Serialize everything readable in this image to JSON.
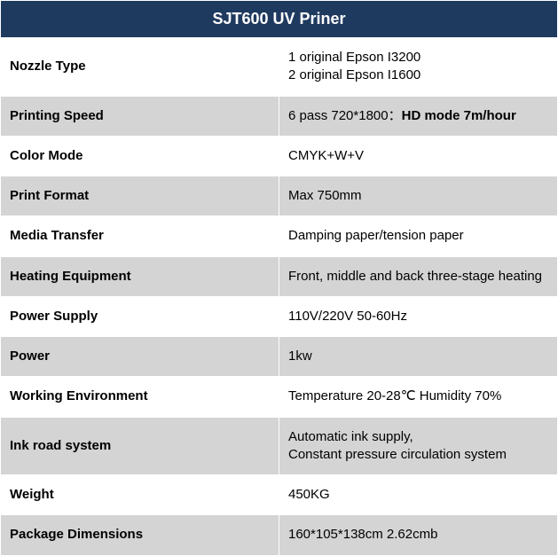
{
  "table": {
    "title": "SJT600 UV Priner",
    "header_bg": "#1f3a5f",
    "header_color": "#ffffff",
    "header_fontsize": 18,
    "row_odd_bg": "#ffffff",
    "row_even_bg": "#d4d4d4",
    "border_color": "#ffffff",
    "label_width": 195,
    "value_width": 434,
    "cell_fontsize": 15,
    "rows": [
      {
        "label": "Nozzle Type",
        "value_line1": "1 original Epson I3200",
        "value_line2": "2 original Epson I1600",
        "multiline": true
      },
      {
        "label": "Printing Speed",
        "value_prefix": "6 pass 720*1800：",
        "value_bold": "HD mode 7m/hour",
        "has_bold": true
      },
      {
        "label": "Color Mode",
        "value": "CMYK+W+V"
      },
      {
        "label": "Print Format",
        "value": "Max 750mm"
      },
      {
        "label": "Media Transfer",
        "value": "Damping paper/tension paper"
      },
      {
        "label": "Heating Equipment",
        "value": "Front, middle and back three-stage heating"
      },
      {
        "label": "Power Supply",
        "value": "110V/220V 50-60Hz"
      },
      {
        "label": "Power",
        "value": "1kw"
      },
      {
        "label": "Working Environment",
        "value": "Temperature 20-28℃ Humidity 70%"
      },
      {
        "label": "Ink road system",
        "value_line1": "Automatic ink supply,",
        "value_line2": "Constant pressure circulation system",
        "multiline": true
      },
      {
        "label": "Weight",
        "value": "450KG"
      },
      {
        "label": "Package Dimensions",
        "value": "160*105*138cm 2.62cmb"
      }
    ]
  }
}
